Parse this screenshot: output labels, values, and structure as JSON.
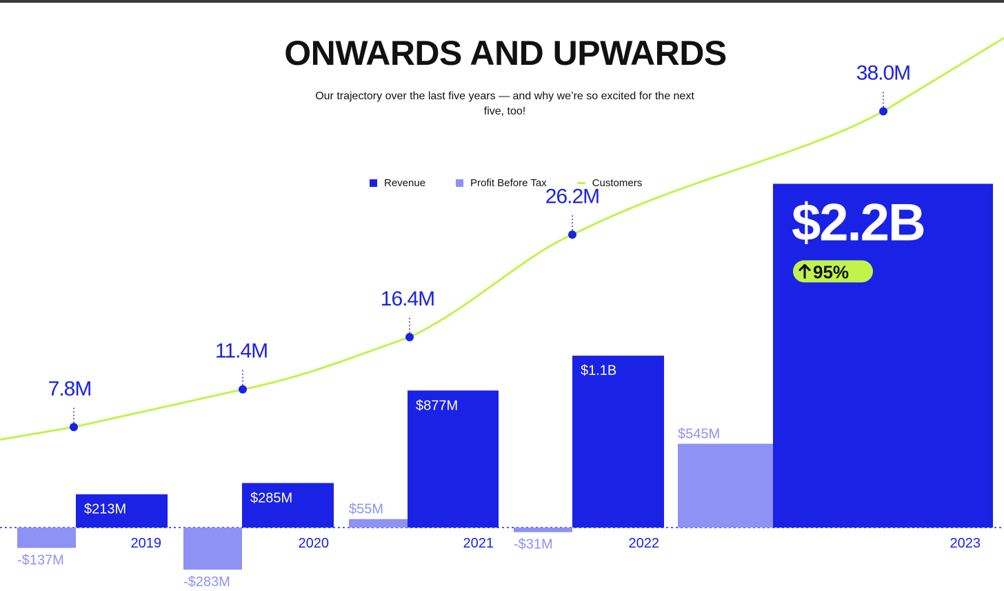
{
  "header": {
    "title": "ONWARDS AND UPWARDS",
    "subtitle": "Our trajectory over the last five years — and why we’re so excited for the next five, too!"
  },
  "legend": [
    {
      "label": "Revenue",
      "color": "#1a22e6",
      "shape": "square"
    },
    {
      "label": "Profit Before Tax",
      "color": "#8e92f4",
      "shape": "square"
    },
    {
      "label": "Customers",
      "color": "#c0f44a",
      "shape": "line"
    }
  ],
  "colors": {
    "revenue": "#1a22e6",
    "profit": "#8e92f4",
    "customers": "#c0f44a",
    "badge": "#c0f44a"
  },
  "chart_data": {
    "type": "bar",
    "title": "ONWARDS AND UPWARDS",
    "categories": [
      "2019",
      "2020",
      "2021",
      "2022",
      "2023"
    ],
    "series": [
      {
        "name": "Profit Before Tax",
        "values": [
          -137,
          -283,
          55,
          -31,
          545
        ],
        "unit": "$M",
        "labels": [
          "-$137M",
          "-$283M",
          "$55M",
          "-$31M",
          "$545M"
        ]
      },
      {
        "name": "Revenue",
        "values": [
          213,
          285,
          877,
          1100,
          2200
        ],
        "unit": "$M",
        "labels": [
          "$213M",
          "$285M",
          "$877M",
          "$1.1B",
          "$2.2B"
        ]
      },
      {
        "name": "Customers",
        "type": "line",
        "values": [
          7.8,
          11.4,
          16.4,
          26.2,
          38.0
        ],
        "unit": "M",
        "labels": [
          "7.8M",
          "11.4M",
          "16.4M",
          "26.2M",
          "38.0M"
        ]
      }
    ],
    "annotations": [
      {
        "category": "2023",
        "text": "95%",
        "icon": "arrow-up-icon"
      }
    ],
    "legend_position": "top-center",
    "grid": false
  }
}
